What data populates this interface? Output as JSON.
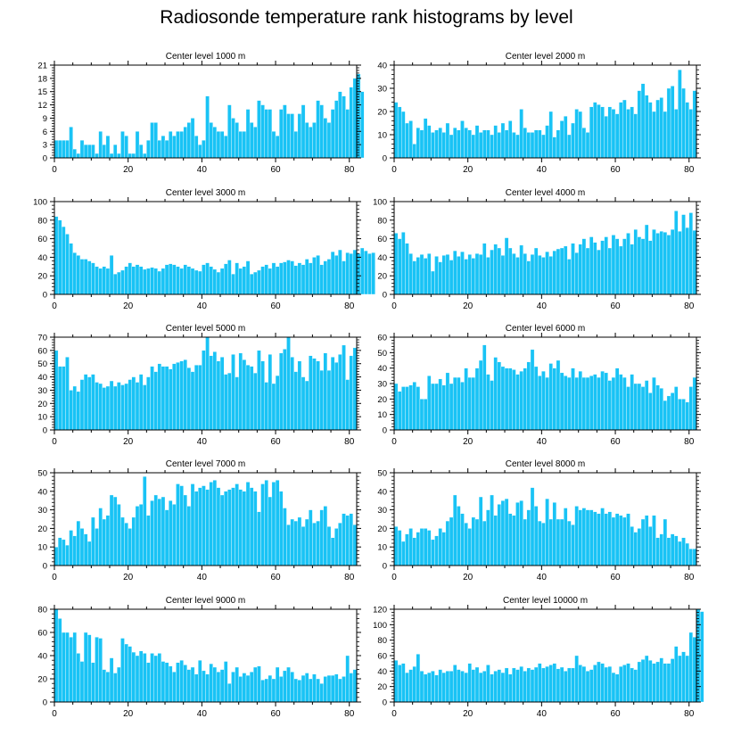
{
  "title": "Radiosonde temperature rank histograms by level",
  "bar_color": "#19c3f5",
  "chart_data": [
    {
      "type": "bar",
      "title": "Center level 1000 m",
      "xlim": [
        0,
        82
      ],
      "ylim": [
        0,
        21
      ],
      "xticks": [
        0,
        20,
        40,
        60,
        80
      ],
      "yticks": [
        0,
        3,
        6,
        9,
        12,
        15,
        18,
        21
      ],
      "values": [
        4,
        4,
        4,
        4,
        7,
        2,
        1,
        4,
        3,
        3,
        3,
        1,
        6,
        3,
        5,
        1,
        3,
        1,
        6,
        5,
        1,
        1,
        6,
        3,
        1,
        4,
        8,
        8,
        4,
        5,
        4,
        6,
        5,
        6,
        6,
        7,
        8,
        9,
        5,
        3,
        4,
        14,
        8,
        7,
        6,
        6,
        5,
        12,
        9,
        8,
        6,
        6,
        11,
        8,
        7,
        13,
        12,
        11,
        11,
        6,
        5,
        11,
        12,
        10,
        10,
        6,
        10,
        12,
        8,
        7,
        8,
        13,
        12,
        9,
        8,
        11,
        13,
        15,
        14,
        11,
        16,
        18,
        19,
        15
      ]
    },
    {
      "type": "bar",
      "title": "Center level 2000 m",
      "xlim": [
        0,
        82
      ],
      "ylim": [
        0,
        40
      ],
      "xticks": [
        0,
        20,
        40,
        60,
        80
      ],
      "yticks": [
        0,
        10,
        20,
        30,
        40
      ],
      "values": [
        24,
        22,
        20,
        15,
        16,
        6,
        13,
        12,
        17,
        14,
        11,
        12,
        13,
        11,
        15,
        10,
        13,
        12,
        16,
        13,
        12,
        10,
        14,
        11,
        12,
        12,
        10,
        14,
        11,
        15,
        12,
        16,
        11,
        10,
        21,
        13,
        11,
        11,
        12,
        12,
        10,
        14,
        20,
        9,
        12,
        16,
        18,
        10,
        15,
        21,
        20,
        13,
        11,
        22,
        24,
        23,
        22,
        18,
        22,
        21,
        19,
        24,
        25,
        21,
        22,
        19,
        29,
        32,
        27,
        24,
        20,
        25,
        26,
        20,
        30,
        31,
        21,
        38,
        30,
        24,
        21,
        29
      ]
    },
    {
      "type": "bar",
      "title": "Center level 3000 m",
      "xlim": [
        0,
        82
      ],
      "ylim": [
        0,
        100
      ],
      "xticks": [
        0,
        20,
        40,
        60,
        80
      ],
      "yticks": [
        0,
        20,
        40,
        60,
        80,
        100
      ],
      "values": [
        84,
        80,
        73,
        65,
        55,
        45,
        42,
        38,
        38,
        36,
        34,
        30,
        28,
        30,
        28,
        42,
        22,
        24,
        26,
        30,
        34,
        30,
        32,
        30,
        27,
        28,
        29,
        28,
        25,
        28,
        32,
        33,
        32,
        30,
        28,
        32,
        30,
        28,
        26,
        25,
        32,
        34,
        30,
        27,
        24,
        28,
        33,
        37,
        22,
        34,
        28,
        30,
        36,
        22,
        24,
        26,
        30,
        32,
        28,
        34,
        30,
        34,
        35,
        37,
        36,
        31,
        34,
        32,
        38,
        34,
        40,
        42,
        32,
        36,
        38,
        46,
        42,
        48,
        36,
        45,
        44,
        48,
        44,
        50,
        47,
        44,
        45
      ]
    },
    {
      "type": "bar",
      "title": "Center level 4000 m",
      "xlim": [
        0,
        82
      ],
      "ylim": [
        0,
        100
      ],
      "xticks": [
        0,
        20,
        40,
        60,
        80
      ],
      "yticks": [
        0,
        20,
        40,
        60,
        80,
        100
      ],
      "values": [
        66,
        60,
        67,
        55,
        44,
        36,
        40,
        43,
        39,
        44,
        25,
        41,
        35,
        42,
        43,
        37,
        47,
        41,
        46,
        38,
        43,
        39,
        44,
        43,
        55,
        40,
        48,
        54,
        50,
        42,
        61,
        50,
        44,
        40,
        53,
        44,
        36,
        43,
        50,
        42,
        40,
        46,
        41,
        47,
        49,
        50,
        52,
        38,
        55,
        45,
        54,
        60,
        50,
        62,
        56,
        48,
        58,
        62,
        50,
        64,
        60,
        52,
        60,
        66,
        54,
        70,
        62,
        60,
        75,
        58,
        70,
        66,
        68,
        67,
        64,
        70,
        90,
        68,
        86,
        72,
        88,
        69
      ]
    },
    {
      "type": "bar",
      "title": "Center level 5000 m",
      "xlim": [
        0,
        82
      ],
      "ylim": [
        0,
        70
      ],
      "xticks": [
        0,
        20,
        40,
        60,
        80
      ],
      "yticks": [
        0,
        10,
        20,
        30,
        40,
        50,
        60,
        70
      ],
      "values": [
        60,
        48,
        48,
        55,
        30,
        33,
        29,
        38,
        42,
        40,
        42,
        36,
        35,
        32,
        33,
        37,
        33,
        36,
        34,
        35,
        38,
        40,
        36,
        42,
        34,
        40,
        48,
        44,
        50,
        48,
        48,
        46,
        50,
        51,
        52,
        53,
        47,
        44,
        49,
        49,
        60,
        70,
        56,
        59,
        52,
        55,
        42,
        43,
        57,
        40,
        58,
        53,
        49,
        48,
        43,
        60,
        52,
        36,
        57,
        35,
        41,
        58,
        61,
        70,
        55,
        44,
        52,
        40,
        37,
        56,
        54,
        52,
        45,
        58,
        45,
        55,
        51,
        57,
        64,
        38,
        56,
        62
      ]
    },
    {
      "type": "bar",
      "title": "Center level 6000 m",
      "xlim": [
        0,
        82
      ],
      "ylim": [
        0,
        60
      ],
      "xticks": [
        0,
        20,
        40,
        60,
        80
      ],
      "yticks": [
        0,
        10,
        20,
        30,
        40,
        50,
        60
      ],
      "values": [
        30,
        25,
        28,
        28,
        29,
        31,
        28,
        20,
        20,
        35,
        30,
        30,
        33,
        29,
        37,
        30,
        34,
        34,
        31,
        40,
        34,
        34,
        40,
        45,
        55,
        36,
        32,
        47,
        44,
        41,
        40,
        40,
        39,
        36,
        38,
        40,
        44,
        52,
        41,
        35,
        38,
        34,
        43,
        40,
        45,
        37,
        35,
        34,
        40,
        34,
        38,
        34,
        34,
        35,
        36,
        34,
        38,
        37,
        32,
        34,
        40,
        36,
        34,
        28,
        36,
        30,
        30,
        28,
        32,
        24,
        34,
        29,
        27,
        19,
        22,
        24,
        28,
        20,
        20,
        18,
        28,
        34
      ]
    },
    {
      "type": "bar",
      "title": "Center level 7000 m",
      "xlim": [
        0,
        82
      ],
      "ylim": [
        0,
        50
      ],
      "xticks": [
        0,
        20,
        40,
        60,
        80
      ],
      "yticks": [
        0,
        10,
        20,
        30,
        40,
        50
      ],
      "values": [
        10,
        15,
        14,
        11,
        19,
        16,
        24,
        20,
        17,
        13,
        26,
        20,
        31,
        25,
        27,
        38,
        37,
        33,
        26,
        23,
        20,
        26,
        32,
        33,
        48,
        27,
        35,
        38,
        36,
        37,
        30,
        35,
        33,
        44,
        43,
        38,
        32,
        44,
        40,
        42,
        43,
        41,
        45,
        46,
        42,
        38,
        40,
        41,
        42,
        44,
        41,
        40,
        45,
        42,
        40,
        29,
        44,
        46,
        37,
        45,
        46,
        40,
        31,
        22,
        25,
        24,
        26,
        21,
        25,
        30,
        23,
        24,
        30,
        32,
        21,
        15,
        20,
        23,
        28,
        27,
        28,
        22
      ]
    },
    {
      "type": "bar",
      "title": "Center level 8000 m",
      "xlim": [
        0,
        82
      ],
      "ylim": [
        0,
        50
      ],
      "xticks": [
        0,
        20,
        40,
        60,
        80
      ],
      "yticks": [
        0,
        10,
        20,
        30,
        40,
        50
      ],
      "values": [
        21,
        19,
        13,
        17,
        20,
        15,
        18,
        20,
        20,
        19,
        14,
        16,
        20,
        18,
        24,
        26,
        38,
        32,
        28,
        23,
        20,
        26,
        25,
        37,
        24,
        30,
        38,
        27,
        33,
        35,
        36,
        28,
        27,
        34,
        35,
        25,
        30,
        42,
        32,
        24,
        23,
        36,
        25,
        34,
        25,
        25,
        31,
        24,
        22,
        32,
        30,
        31,
        30,
        30,
        29,
        28,
        31,
        28,
        29,
        26,
        28,
        27,
        26,
        28,
        21,
        18,
        20,
        25,
        27,
        21,
        27,
        15,
        17,
        25,
        15,
        17,
        16,
        13,
        15,
        12,
        9,
        9
      ]
    },
    {
      "type": "bar",
      "title": "Center level 9000 m",
      "xlim": [
        0,
        82
      ],
      "ylim": [
        0,
        80
      ],
      "xticks": [
        0,
        20,
        40,
        60,
        80
      ],
      "yticks": [
        0,
        20,
        40,
        60,
        80
      ],
      "values": [
        80,
        72,
        60,
        60,
        56,
        60,
        42,
        35,
        60,
        58,
        34,
        56,
        55,
        28,
        26,
        38,
        25,
        30,
        55,
        50,
        48,
        43,
        40,
        44,
        42,
        34,
        42,
        40,
        42,
        35,
        34,
        31,
        26,
        34,
        36,
        32,
        28,
        30,
        24,
        36,
        27,
        24,
        33,
        30,
        26,
        28,
        35,
        16,
        26,
        30,
        22,
        25,
        23,
        26,
        30,
        31,
        19,
        20,
        23,
        20,
        30,
        22,
        27,
        30,
        26,
        20,
        19,
        23,
        25,
        20,
        24,
        20,
        16,
        22,
        23,
        23,
        24,
        20,
        22,
        40,
        25,
        28
      ]
    },
    {
      "type": "bar",
      "title": "Center level 10000 m",
      "xlim": [
        0,
        82
      ],
      "ylim": [
        0,
        120
      ],
      "xticks": [
        0,
        20,
        40,
        60,
        80
      ],
      "yticks": [
        0,
        20,
        40,
        60,
        80,
        100,
        120
      ],
      "values": [
        54,
        48,
        50,
        38,
        42,
        46,
        62,
        40,
        36,
        38,
        40,
        35,
        42,
        38,
        40,
        40,
        48,
        42,
        40,
        38,
        50,
        42,
        45,
        38,
        40,
        48,
        36,
        40,
        42,
        38,
        44,
        36,
        44,
        42,
        46,
        40,
        44,
        42,
        45,
        50,
        44,
        46,
        48,
        50,
        43,
        45,
        40,
        44,
        44,
        60,
        48,
        46,
        40,
        42,
        48,
        52,
        50,
        45,
        46,
        38,
        36,
        46,
        48,
        50,
        44,
        42,
        52,
        55,
        60,
        54,
        50,
        52,
        57,
        50,
        50,
        56,
        72,
        60,
        65,
        60,
        90,
        84,
        120,
        117
      ]
    }
  ]
}
